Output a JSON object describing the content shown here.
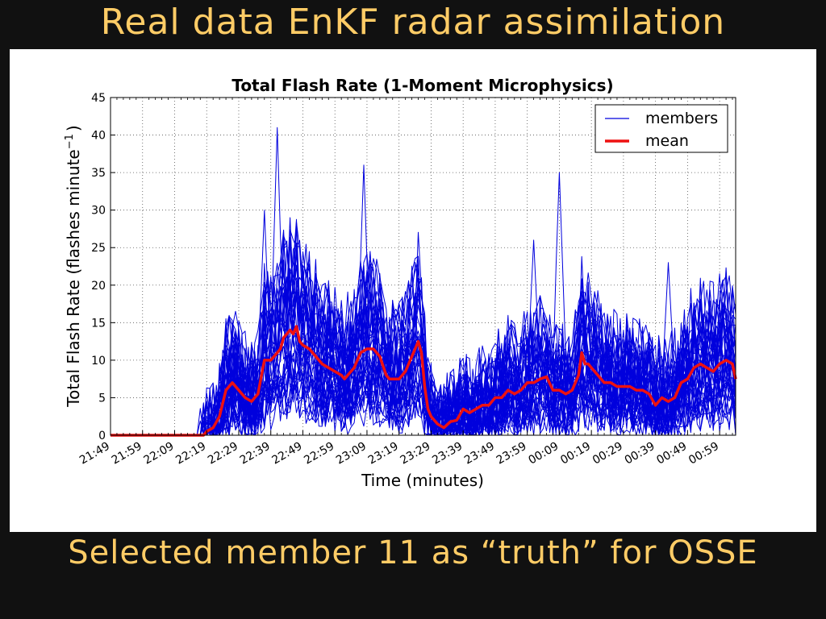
{
  "slide": {
    "title": "Real data EnKF radar assimilation",
    "caption": "Selected member 11 as “truth” for OSSE"
  },
  "chart_data": {
    "type": "line",
    "title": "Total Flash Rate (1-Moment Microphysics)",
    "xlabel": "Time (minutes)",
    "ylabel": "Total Flash Rate (flashes minute",
    "ylabel_sup": "−1",
    "ylabel_end": ")",
    "x_minutes_range": [
      0,
      195
    ],
    "ylim": [
      0,
      45
    ],
    "yticks": [
      0,
      5,
      10,
      15,
      20,
      25,
      30,
      35,
      40,
      45
    ],
    "xticks": [
      "21:49",
      "21:59",
      "22:09",
      "22:19",
      "22:29",
      "22:39",
      "22:49",
      "22:59",
      "23:09",
      "23:19",
      "23:29",
      "23:39",
      "23:49",
      "23:59",
      "00:09",
      "00:19",
      "00:29",
      "00:39",
      "00:49",
      "00:59"
    ],
    "grid": true,
    "legend": {
      "position": "top-right",
      "entries": [
        {
          "label": "members",
          "color": "#0000dd"
        },
        {
          "label": "mean",
          "color": "#ee1111"
        }
      ]
    },
    "colors": {
      "members": "#0000dd",
      "mean": "#ee1111"
    },
    "member_count": 40,
    "mean": {
      "x": [
        0,
        28,
        29,
        30,
        32,
        34,
        36,
        38,
        40,
        42,
        44,
        45,
        46,
        48,
        50,
        52,
        53,
        54,
        55,
        56,
        57,
        58,
        59,
        60,
        62,
        64,
        66,
        68,
        70,
        72,
        73,
        74,
        75,
        76,
        78,
        80,
        82,
        84,
        86,
        87,
        88,
        89,
        90,
        91,
        92,
        93,
        94,
        95,
        96,
        97,
        98,
        99,
        100,
        101,
        102,
        104,
        106,
        108,
        110,
        112,
        114,
        116,
        118,
        120,
        122,
        124,
        126,
        128,
        130,
        132,
        134,
        136,
        138,
        140,
        142,
        144,
        146,
        147,
        148,
        149,
        150,
        152,
        154,
        156,
        158,
        160,
        162,
        164,
        166,
        168,
        170,
        172,
        174,
        176,
        178,
        180,
        182,
        184,
        186,
        188,
        190,
        192,
        194,
        195
      ],
      "y": [
        0,
        0,
        0,
        0.5,
        1,
        2.5,
        6,
        7,
        6,
        5,
        4.5,
        5,
        5.5,
        10,
        10,
        11,
        11.5,
        13,
        13.5,
        14,
        13.5,
        14.5,
        12.5,
        12,
        11.5,
        10.5,
        9.5,
        9,
        8.5,
        8,
        7.5,
        8,
        8.5,
        9,
        11,
        11.5,
        11.5,
        10.5,
        8,
        7.5,
        7.5,
        7.5,
        7.5,
        8,
        8.5,
        9.5,
        10.5,
        11.5,
        12.5,
        11,
        6.5,
        3.5,
        2.5,
        2,
        1.5,
        1,
        1.8,
        2,
        3.5,
        3,
        3.5,
        4,
        4,
        5,
        5,
        6,
        5.5,
        6,
        7,
        7,
        7.5,
        7.8,
        6,
        6,
        5.5,
        6,
        8,
        11,
        9.5,
        9.5,
        9,
        8,
        7,
        7,
        6.5,
        6.5,
        6.5,
        6,
        6,
        5.5,
        4,
        5,
        4.5,
        5,
        7,
        7.5,
        9,
        9.5,
        9,
        8.5,
        9.5,
        10,
        9.5,
        7.5
      ]
    }
  }
}
